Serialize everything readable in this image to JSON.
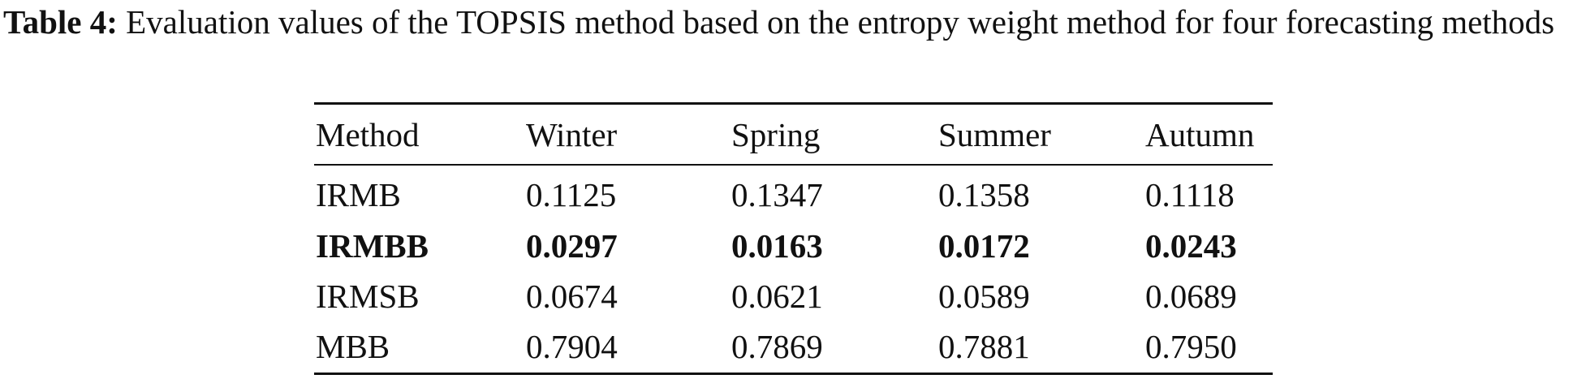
{
  "caption": {
    "label": "Table 4:",
    "text": "Evaluation values of the TOPSIS method based on the entropy weight method for four forecasting methods"
  },
  "table": {
    "header": [
      "Method",
      "Winter",
      "Spring",
      "Summer",
      "Autumn"
    ],
    "rows": [
      [
        "IRMB",
        "0.1125",
        "0.1347",
        "0.1358",
        "0.1118"
      ],
      [
        "IRMBB",
        "0.0297",
        "0.0163",
        "0.0172",
        "0.0243"
      ],
      [
        "IRMSB",
        "0.0674",
        "0.0621",
        "0.0589",
        "0.0689"
      ],
      [
        "MBB",
        "0.7904",
        "0.7869",
        "0.7881",
        "0.7950"
      ]
    ]
  }
}
